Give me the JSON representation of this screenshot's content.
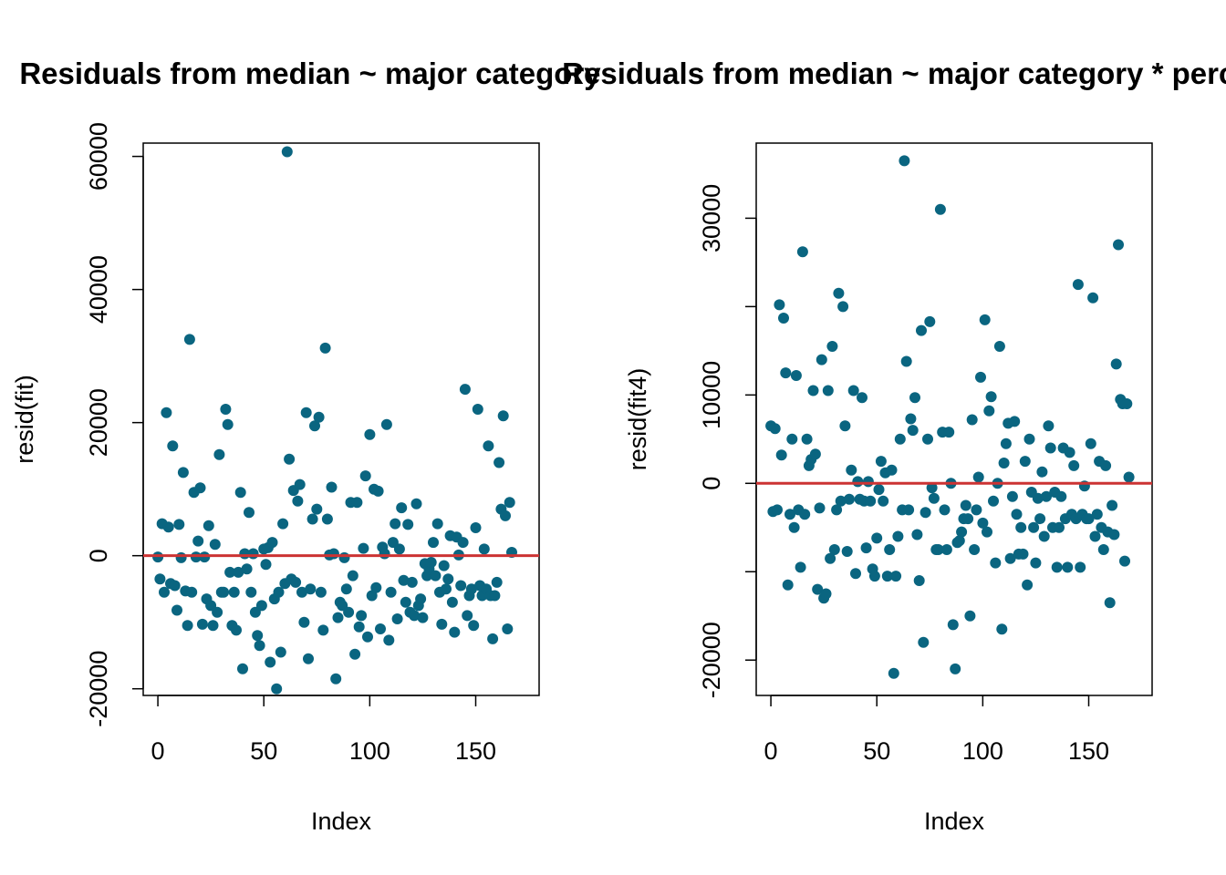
{
  "colors": {
    "point": "#0a6580",
    "zero_line": "#cc3333",
    "axis": "#000000"
  },
  "chart_data": [
    {
      "type": "scatter",
      "title": "Residuals from median ~ major category",
      "xlabel": "Index",
      "ylabel": "resid(fit)",
      "xlim": [
        0,
        173
      ],
      "ylim": [
        -21000,
        62000
      ],
      "xticks": [
        0,
        50,
        100,
        150
      ],
      "yticks": [
        -20000,
        0,
        20000,
        40000,
        60000
      ],
      "xtick_labels": [
        "0",
        "50",
        "100",
        "150"
      ],
      "ytick_labels": [
        "-20000",
        "0",
        "20000",
        "40000",
        "60000"
      ],
      "hline": 0,
      "grid": false,
      "points": [
        [
          0,
          -200
        ],
        [
          1,
          -3500
        ],
        [
          2,
          4800
        ],
        [
          3,
          -5500
        ],
        [
          4,
          21500
        ],
        [
          5,
          4300
        ],
        [
          6,
          -4200
        ],
        [
          7,
          16500
        ],
        [
          8,
          -4500
        ],
        [
          9,
          -8200
        ],
        [
          10,
          4700
        ],
        [
          11,
          -300
        ],
        [
          12,
          12500
        ],
        [
          13,
          -5300
        ],
        [
          14,
          -10500
        ],
        [
          15,
          32500
        ],
        [
          16,
          -5500
        ],
        [
          17,
          9500
        ],
        [
          18,
          -200
        ],
        [
          19,
          2200
        ],
        [
          20,
          10200
        ],
        [
          21,
          -10300
        ],
        [
          22,
          -200
        ],
        [
          23,
          -6500
        ],
        [
          24,
          4500
        ],
        [
          25,
          -7500
        ],
        [
          26,
          -10500
        ],
        [
          27,
          1700
        ],
        [
          28,
          -8500
        ],
        [
          29,
          15200
        ],
        [
          30,
          -5500
        ],
        [
          31,
          -5500
        ],
        [
          32,
          22000
        ],
        [
          33,
          19700
        ],
        [
          34,
          -2500
        ],
        [
          35,
          -10500
        ],
        [
          36,
          -5500
        ],
        [
          37,
          -11200
        ],
        [
          38,
          -2500
        ],
        [
          39,
          9500
        ],
        [
          40,
          -17000
        ],
        [
          41,
          300
        ],
        [
          42,
          -2000
        ],
        [
          43,
          6500
        ],
        [
          44,
          -5500
        ],
        [
          45,
          300
        ],
        [
          46,
          -8500
        ],
        [
          47,
          -12000
        ],
        [
          48,
          -13500
        ],
        [
          49,
          -7500
        ],
        [
          50,
          1000
        ],
        [
          51,
          -1300
        ],
        [
          52,
          1200
        ],
        [
          53,
          -16000
        ],
        [
          54,
          2000
        ],
        [
          55,
          -6500
        ],
        [
          56,
          -20000
        ],
        [
          57,
          -5500
        ],
        [
          58,
          -14500
        ],
        [
          59,
          4800
        ],
        [
          60,
          -4200
        ],
        [
          61,
          60700
        ],
        [
          62,
          14500
        ],
        [
          63,
          -3500
        ],
        [
          64,
          9800
        ],
        [
          65,
          -4000
        ],
        [
          66,
          8200
        ],
        [
          67,
          10700
        ],
        [
          68,
          -5500
        ],
        [
          69,
          -10000
        ],
        [
          70,
          21500
        ],
        [
          71,
          -15500
        ],
        [
          72,
          -5000
        ],
        [
          73,
          5500
        ],
        [
          74,
          19500
        ],
        [
          75,
          7000
        ],
        [
          76,
          20800
        ],
        [
          77,
          -5500
        ],
        [
          78,
          -11200
        ],
        [
          79,
          31200
        ],
        [
          80,
          5500
        ],
        [
          81,
          100
        ],
        [
          82,
          10300
        ],
        [
          83,
          300
        ],
        [
          84,
          -18500
        ],
        [
          85,
          -9300
        ],
        [
          86,
          -7000
        ],
        [
          87,
          -7500
        ],
        [
          88,
          -300
        ],
        [
          89,
          -5000
        ],
        [
          90,
          -8500
        ],
        [
          91,
          8000
        ],
        [
          92,
          -3000
        ],
        [
          93,
          -14800
        ],
        [
          94,
          8000
        ],
        [
          95,
          -10700
        ],
        [
          96,
          -9000
        ],
        [
          97,
          1100
        ],
        [
          98,
          12000
        ],
        [
          99,
          -12200
        ],
        [
          100,
          18200
        ],
        [
          101,
          -6000
        ],
        [
          102,
          10000
        ],
        [
          103,
          -4800
        ],
        [
          104,
          9700
        ],
        [
          105,
          -11000
        ],
        [
          106,
          1300
        ],
        [
          107,
          300
        ],
        [
          108,
          19700
        ],
        [
          109,
          -12700
        ],
        [
          110,
          -5500
        ],
        [
          111,
          2000
        ],
        [
          112,
          4800
        ],
        [
          113,
          -9500
        ],
        [
          114,
          1000
        ],
        [
          115,
          7200
        ],
        [
          116,
          -3700
        ],
        [
          117,
          -7000
        ],
        [
          118,
          4700
        ],
        [
          119,
          -8500
        ],
        [
          120,
          -4000
        ],
        [
          121,
          -9000
        ],
        [
          122,
          7800
        ],
        [
          123,
          -7500
        ],
        [
          124,
          -6500
        ],
        [
          125,
          -9300
        ],
        [
          126,
          -1200
        ],
        [
          127,
          -3000
        ],
        [
          128,
          -2000
        ],
        [
          129,
          -1000
        ],
        [
          130,
          2000
        ],
        [
          131,
          -3000
        ],
        [
          132,
          4800
        ],
        [
          133,
          -5500
        ],
        [
          134,
          -10300
        ],
        [
          135,
          -1500
        ],
        [
          136,
          -5000
        ],
        [
          137,
          -3500
        ],
        [
          138,
          3000
        ],
        [
          139,
          -7000
        ],
        [
          140,
          -11500
        ],
        [
          141,
          2800
        ],
        [
          142,
          100
        ],
        [
          143,
          -4500
        ],
        [
          144,
          2000
        ],
        [
          145,
          25000
        ],
        [
          146,
          -9000
        ],
        [
          147,
          -6000
        ],
        [
          148,
          -5000
        ],
        [
          149,
          -10500
        ],
        [
          150,
          4200
        ],
        [
          151,
          22000
        ],
        [
          152,
          -4500
        ],
        [
          153,
          -6000
        ],
        [
          154,
          1000
        ],
        [
          155,
          -5000
        ],
        [
          156,
          16500
        ],
        [
          157,
          -6000
        ],
        [
          158,
          -12500
        ],
        [
          159,
          -6000
        ],
        [
          160,
          -4000
        ],
        [
          161,
          14000
        ],
        [
          162,
          7000
        ],
        [
          163,
          21000
        ],
        [
          164,
          6000
        ],
        [
          165,
          -11000
        ],
        [
          166,
          8000
        ],
        [
          167,
          500
        ]
      ]
    },
    {
      "type": "scatter",
      "title": "Residuals from median ~ major category * percent",
      "xlabel": "Index",
      "ylabel": "resid(fit4)",
      "xlim": [
        0,
        173
      ],
      "ylim": [
        -24000,
        38500
      ],
      "xticks": [
        0,
        50,
        100,
        150
      ],
      "yticks": [
        -20000,
        0,
        10000,
        30000
      ],
      "xtick_labels": [
        "0",
        "50",
        "100",
        "150"
      ],
      "ytick_labels": [
        "-20000",
        "0",
        "10000",
        "30000"
      ],
      "hline": 0,
      "grid": false,
      "points": [
        [
          0,
          6500
        ],
        [
          1,
          -3200
        ],
        [
          2,
          6200
        ],
        [
          3,
          -3000
        ],
        [
          4,
          20200
        ],
        [
          5,
          3200
        ],
        [
          6,
          18700
        ],
        [
          7,
          12500
        ],
        [
          8,
          -11500
        ],
        [
          9,
          -3500
        ],
        [
          10,
          5000
        ],
        [
          11,
          -5000
        ],
        [
          12,
          12200
        ],
        [
          13,
          -3000
        ],
        [
          14,
          -9500
        ],
        [
          15,
          26200
        ],
        [
          16,
          -3500
        ],
        [
          17,
          5000
        ],
        [
          18,
          2000
        ],
        [
          19,
          2700
        ],
        [
          20,
          10500
        ],
        [
          21,
          3300
        ],
        [
          22,
          -12000
        ],
        [
          23,
          -2800
        ],
        [
          24,
          14000
        ],
        [
          25,
          -13000
        ],
        [
          26,
          -12500
        ],
        [
          27,
          10500
        ],
        [
          28,
          -8500
        ],
        [
          29,
          15500
        ],
        [
          30,
          -7500
        ],
        [
          31,
          -3000
        ],
        [
          32,
          21500
        ],
        [
          33,
          -2000
        ],
        [
          34,
          20000
        ],
        [
          35,
          6500
        ],
        [
          36,
          -7700
        ],
        [
          37,
          -1800
        ],
        [
          38,
          1500
        ],
        [
          39,
          10500
        ],
        [
          40,
          -10200
        ],
        [
          41,
          200
        ],
        [
          42,
          -1800
        ],
        [
          43,
          9700
        ],
        [
          44,
          -2000
        ],
        [
          45,
          -7300
        ],
        [
          46,
          200
        ],
        [
          47,
          -2000
        ],
        [
          48,
          -9700
        ],
        [
          49,
          -10500
        ],
        [
          50,
          -6200
        ],
        [
          51,
          -700
        ],
        [
          52,
          2500
        ],
        [
          53,
          -2000
        ],
        [
          54,
          1200
        ],
        [
          55,
          -10500
        ],
        [
          56,
          -7500
        ],
        [
          57,
          1500
        ],
        [
          58,
          -21500
        ],
        [
          59,
          -10500
        ],
        [
          60,
          -6000
        ],
        [
          61,
          5000
        ],
        [
          62,
          -3000
        ],
        [
          63,
          36500
        ],
        [
          64,
          13800
        ],
        [
          65,
          -3000
        ],
        [
          66,
          7300
        ],
        [
          67,
          6000
        ],
        [
          68,
          9700
        ],
        [
          69,
          -5800
        ],
        [
          70,
          -11000
        ],
        [
          71,
          17300
        ],
        [
          72,
          -18000
        ],
        [
          73,
          -3300
        ],
        [
          74,
          5000
        ],
        [
          75,
          18300
        ],
        [
          76,
          -500
        ],
        [
          77,
          -1700
        ],
        [
          78,
          -7500
        ],
        [
          79,
          -7500
        ],
        [
          80,
          31000
        ],
        [
          81,
          5800
        ],
        [
          82,
          -3000
        ],
        [
          83,
          -7500
        ],
        [
          84,
          5800
        ],
        [
          85,
          0
        ],
        [
          86,
          -16000
        ],
        [
          87,
          -21000
        ],
        [
          88,
          -6700
        ],
        [
          89,
          -6500
        ],
        [
          90,
          -5500
        ],
        [
          91,
          -4000
        ],
        [
          92,
          -2500
        ],
        [
          93,
          -4000
        ],
        [
          94,
          -15000
        ],
        [
          95,
          7200
        ],
        [
          96,
          -7500
        ],
        [
          97,
          -3000
        ],
        [
          98,
          700
        ],
        [
          99,
          12000
        ],
        [
          100,
          -4500
        ],
        [
          101,
          18500
        ],
        [
          102,
          -5500
        ],
        [
          103,
          8200
        ],
        [
          104,
          9800
        ],
        [
          105,
          -2000
        ],
        [
          106,
          -9000
        ],
        [
          107,
          0
        ],
        [
          108,
          15500
        ],
        [
          109,
          -16500
        ],
        [
          110,
          2300
        ],
        [
          111,
          4500
        ],
        [
          112,
          6800
        ],
        [
          113,
          -8500
        ],
        [
          114,
          -1500
        ],
        [
          115,
          7000
        ],
        [
          116,
          -3500
        ],
        [
          117,
          -8000
        ],
        [
          118,
          -5000
        ],
        [
          119,
          -8000
        ],
        [
          120,
          2500
        ],
        [
          121,
          -11500
        ],
        [
          122,
          5000
        ],
        [
          123,
          -1000
        ],
        [
          124,
          -5000
        ],
        [
          125,
          -9000
        ],
        [
          126,
          -1700
        ],
        [
          127,
          -4000
        ],
        [
          128,
          1300
        ],
        [
          129,
          -6000
        ],
        [
          130,
          -1500
        ],
        [
          131,
          6500
        ],
        [
          132,
          4000
        ],
        [
          133,
          -5000
        ],
        [
          134,
          -1000
        ],
        [
          135,
          -9500
        ],
        [
          136,
          -5000
        ],
        [
          137,
          -1500
        ],
        [
          138,
          4000
        ],
        [
          139,
          -4000
        ],
        [
          140,
          -9500
        ],
        [
          141,
          3500
        ],
        [
          142,
          -3500
        ],
        [
          143,
          2000
        ],
        [
          144,
          -4000
        ],
        [
          145,
          22500
        ],
        [
          146,
          -9500
        ],
        [
          147,
          -3500
        ],
        [
          148,
          -300
        ],
        [
          149,
          -4000
        ],
        [
          150,
          -4000
        ],
        [
          151,
          4500
        ],
        [
          152,
          21000
        ],
        [
          153,
          -6000
        ],
        [
          154,
          -3500
        ],
        [
          155,
          2500
        ],
        [
          156,
          -5000
        ],
        [
          157,
          -7500
        ],
        [
          158,
          2000
        ],
        [
          159,
          -5500
        ],
        [
          160,
          -13500
        ],
        [
          161,
          -2500
        ],
        [
          162,
          -5800
        ],
        [
          163,
          13500
        ],
        [
          164,
          27000
        ],
        [
          165,
          9500
        ],
        [
          166,
          9000
        ],
        [
          167,
          -8800
        ],
        [
          168,
          9000
        ],
        [
          169,
          700
        ]
      ]
    }
  ]
}
